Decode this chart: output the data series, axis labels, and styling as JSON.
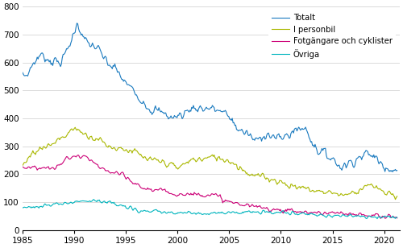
{
  "title": "",
  "xlabel": "",
  "ylabel": "",
  "xlim": [
    1985,
    2021.5
  ],
  "ylim": [
    0,
    800
  ],
  "yticks": [
    0,
    100,
    200,
    300,
    400,
    500,
    600,
    700,
    800
  ],
  "xticks": [
    1985,
    1990,
    1995,
    2000,
    2005,
    2010,
    2015,
    2020
  ],
  "colors": {
    "Totalt": "#1a7abf",
    "I personbil": "#aab800",
    "Fotgangare": "#cc0077",
    "Ovriga": "#00b5be"
  },
  "legend_labels": [
    "Totalt",
    "I personbil",
    "Fotgängare och cyklister",
    "Övriga"
  ],
  "background_color": "#ffffff",
  "grid_color": "#cccccc",
  "line_width": 0.8
}
